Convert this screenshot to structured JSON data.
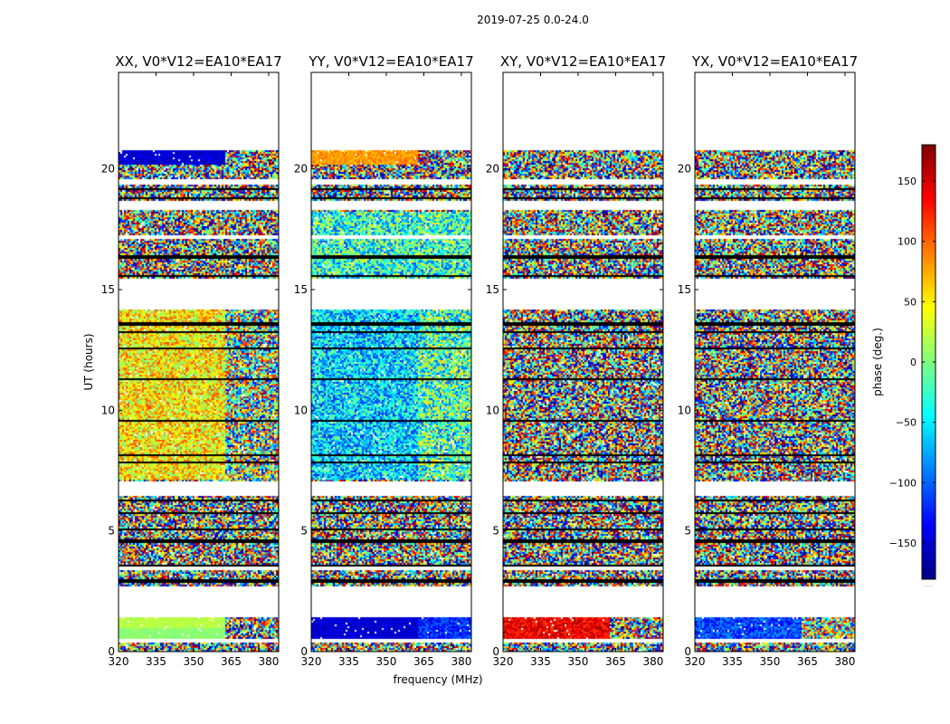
{
  "figure": {
    "suptitle": "2019-07-25 0.0-24.0",
    "xlabel": "frequency (MHz)",
    "ylabel": "UT (hours)",
    "colorbar_label": "phase (deg.)",
    "colorbar_footnote": "......"
  },
  "chart_data": {
    "type": "heatmap",
    "x_range": [
      320,
      384
    ],
    "x_ticks": [
      320,
      335,
      350,
      365,
      380
    ],
    "y_range": [
      0,
      24
    ],
    "y_ticks": [
      0,
      5,
      10,
      15,
      20
    ],
    "colorbar": {
      "range": [
        -180,
        180
      ],
      "ticks": [
        -150,
        -100,
        -50,
        0,
        50,
        100,
        150
      ],
      "colormap": [
        "#00007f",
        "#0000ff",
        "#007fff",
        "#00ffff",
        "#7fff7f",
        "#ffff00",
        "#ff7f00",
        "#ff0000",
        "#7f0000"
      ]
    },
    "panels": [
      {
        "title": "XX, V0*V12=EA10*EA17",
        "description": "coherent phase around +40 to +90 deg at 320-362 MHz; ~0 deg band near 0.8-1.4 h"
      },
      {
        "title": "YY, V0*V12=EA10*EA17",
        "description": "coherent phase around -20 to -120 deg; ~-150 deg band near 0.8-1.4 h"
      },
      {
        "title": "XY, V0*V12=EA10*EA17",
        "description": "noise-like random phase; ~+130 deg band near 0.8-1.4 h"
      },
      {
        "title": "YX, V0*V12=EA10*EA17",
        "description": "noise-like random phase; ~-110 deg band near 0.8-1.4 h"
      }
    ],
    "data_bands_hours": [
      [
        0.05,
        0.45
      ],
      [
        0.55,
        1.45
      ],
      [
        2.75,
        3.45
      ],
      [
        3.6,
        6.5
      ],
      [
        7.1,
        14.2
      ],
      [
        15.5,
        17.1
      ],
      [
        17.3,
        18.3
      ],
      [
        18.7,
        19.4
      ],
      [
        19.6,
        20.3
      ],
      [
        20.2,
        20.8
      ]
    ],
    "masked_rows_hours": [
      0.5,
      2.95,
      3.6,
      4.6,
      5.1,
      5.8,
      6.3,
      7.9,
      8.2,
      9.6,
      11.3,
      12.6,
      13.3,
      13.6,
      15.6,
      16.4,
      18.8,
      19.2
    ]
  }
}
